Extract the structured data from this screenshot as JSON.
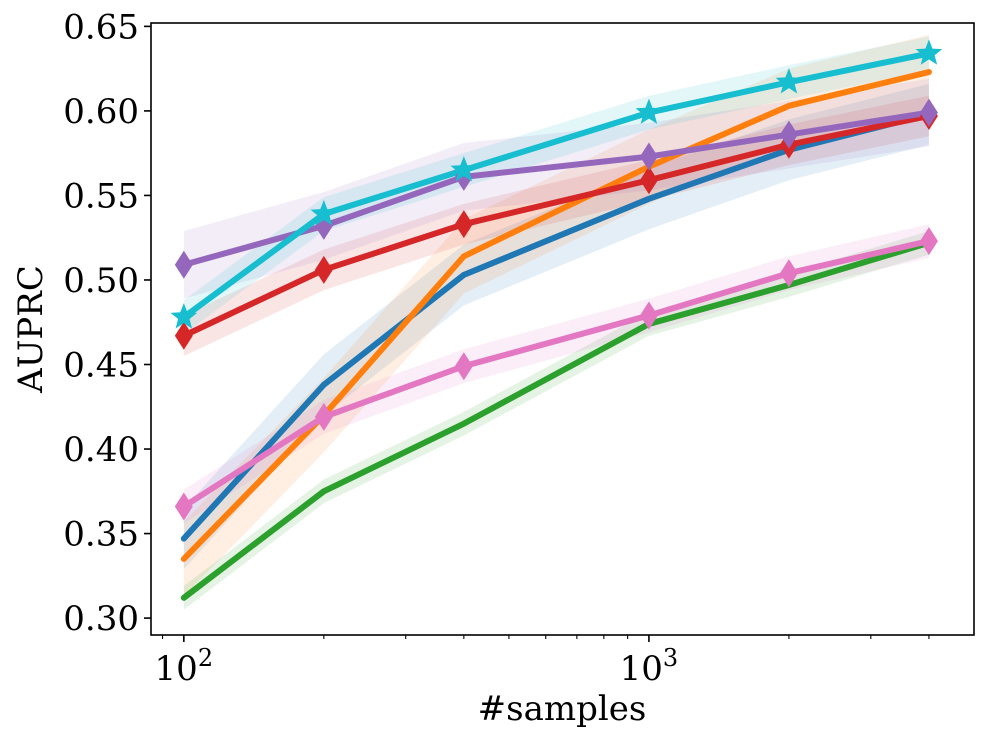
{
  "chart_data": {
    "type": "line",
    "xlabel": "#samples",
    "ylabel": "AUPRC",
    "xscale": "log",
    "xlim": [
      85,
      5000
    ],
    "ylim": [
      0.29,
      0.652
    ],
    "yticks": [
      0.3,
      0.35,
      0.4,
      0.45,
      0.5,
      0.55,
      0.6,
      0.65
    ],
    "ytick_labels": [
      "0.30",
      "0.35",
      "0.40",
      "0.45",
      "0.50",
      "0.55",
      "0.60",
      "0.65"
    ],
    "xticks": [
      {
        "value": 100,
        "base": "10",
        "exp": "2"
      },
      {
        "value": 1000,
        "base": "10",
        "exp": "3"
      }
    ],
    "x": [
      100,
      200,
      400,
      1000,
      2000,
      4000
    ],
    "series": [
      {
        "name": "blue",
        "color": "#1f77b4",
        "marker": "none",
        "values": [
          0.347,
          0.438,
          0.503,
          0.548,
          0.577,
          0.598
        ],
        "band": 0.018
      },
      {
        "name": "orange",
        "color": "#ff7f0e",
        "marker": "none",
        "values": [
          0.335,
          0.42,
          0.514,
          0.567,
          0.603,
          0.623
        ],
        "band": 0.022
      },
      {
        "name": "green",
        "color": "#2ca02c",
        "marker": "none",
        "values": [
          0.312,
          0.375,
          0.415,
          0.474,
          0.497,
          0.522
        ],
        "band": 0.007
      },
      {
        "name": "red",
        "color": "#d62728",
        "marker": "diamond",
        "values": [
          0.467,
          0.506,
          0.533,
          0.559,
          0.58,
          0.597
        ],
        "band": 0.012
      },
      {
        "name": "purple",
        "color": "#9467bd",
        "marker": "diamond",
        "values": [
          0.509,
          0.532,
          0.561,
          0.573,
          0.586,
          0.599
        ],
        "band": 0.02
      },
      {
        "name": "pink",
        "color": "#e377c2",
        "marker": "diamond",
        "values": [
          0.366,
          0.419,
          0.449,
          0.479,
          0.504,
          0.523
        ],
        "band": 0.01
      },
      {
        "name": "cyan",
        "color": "#17becf",
        "marker": "star",
        "values": [
          0.478,
          0.539,
          0.565,
          0.599,
          0.617,
          0.634
        ],
        "band": 0.01
      }
    ]
  }
}
